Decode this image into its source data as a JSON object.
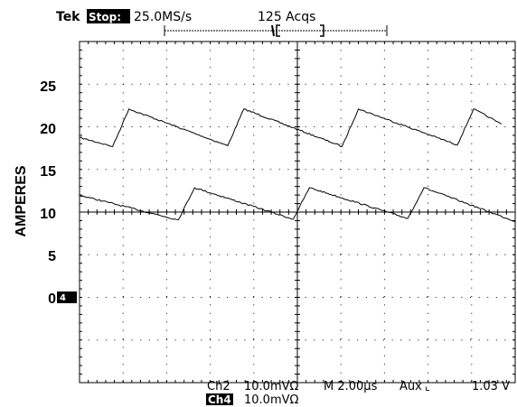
{
  "header": {
    "brand": "Tek",
    "state": "Stop:",
    "sample_rate": "25.0MS/s",
    "acquisitions": "125 Acqs"
  },
  "ground_marker": "4",
  "footer": {
    "ch2": "Ch2",
    "ch2_scale": "10.0mVΩ",
    "timebase": "M 2.00µs",
    "trigger_source": "Aux",
    "trigger_symbol": "⌞",
    "trigger_level": "1.03 V",
    "ch4": "Ch4",
    "ch4_scale": "10.0mVΩ"
  },
  "chart_data": {
    "type": "line",
    "title": "",
    "xlabel": "",
    "ylabel": "AMPERES",
    "ylim": [
      -15.5,
      30
    ],
    "yticks": [
      "25",
      "20",
      "15",
      "10",
      "5",
      "0"
    ],
    "grid": true,
    "series": [
      {
        "x": [
          0,
          1.37,
          2.04,
          6.12,
          6.79,
          10.85,
          11.52,
          15.61,
          16.28,
          17.43
        ],
        "y": [
          17.2,
          16.0,
          21.0,
          16.1,
          21.0,
          16.0,
          21.0,
          16.2,
          21.0,
          19.0
        ]
      },
      {
        "x": [
          0,
          4.08,
          4.75,
          8.83,
          9.5,
          13.56,
          14.23,
          18.0
        ],
        "y": [
          9.5,
          6.2,
          10.5,
          6.3,
          10.5,
          6.4,
          10.5,
          6.0
        ]
      }
    ]
  }
}
